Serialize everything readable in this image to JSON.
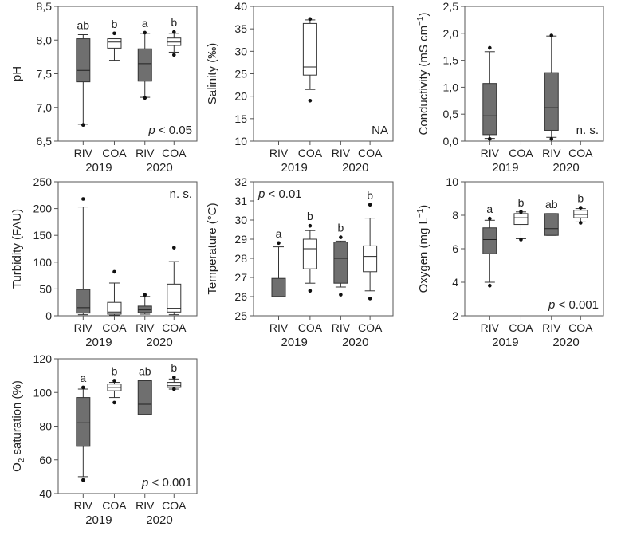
{
  "chart_data": [
    {
      "type": "box",
      "id": "ph",
      "ylabel": "pH",
      "ylim": [
        6.5,
        8.5
      ],
      "yticks": [
        6.5,
        7.0,
        7.5,
        8.0,
        8.5
      ],
      "ytick_labels": [
        "6,5",
        "7,0",
        "7,5",
        "8,0",
        "8,5"
      ],
      "categories": [
        "RIV",
        "COA",
        "RIV",
        "COA"
      ],
      "groups": [
        "2019",
        "2020"
      ],
      "annotation": {
        "italic": "p",
        "rest": " < 0.05"
      },
      "boxes": [
        {
          "fill": "dark",
          "min": 6.75,
          "q1": 7.38,
          "median": 7.55,
          "q3": 8.02,
          "max": 8.08,
          "outliers": [
            6.74
          ],
          "letter": "ab"
        },
        {
          "fill": "light",
          "min": 7.7,
          "q1": 7.88,
          "median": 7.97,
          "q3": 8.02,
          "max": 8.02,
          "outliers": [
            8.1
          ],
          "letter": "b"
        },
        {
          "fill": "dark",
          "min": 7.15,
          "q1": 7.39,
          "median": 7.65,
          "q3": 7.87,
          "max": 8.1,
          "outliers": [
            7.14,
            8.11
          ],
          "letter": "a"
        },
        {
          "fill": "light",
          "min": 7.82,
          "q1": 7.92,
          "median": 7.97,
          "q3": 8.03,
          "max": 8.1,
          "outliers": [
            7.78,
            8.12
          ],
          "letter": "b"
        }
      ]
    },
    {
      "type": "box",
      "id": "salinity",
      "ylabel": "Salinity (‰)",
      "ylim": [
        10,
        40
      ],
      "yticks": [
        10,
        15,
        20,
        25,
        30,
        35,
        40
      ],
      "ytick_labels": [
        "10",
        "15",
        "20",
        "25",
        "30",
        "35",
        "40"
      ],
      "categories": [
        "RIV",
        "COA",
        "RIV",
        "COA"
      ],
      "groups": [
        "2019",
        "2020"
      ],
      "annotation": {
        "italic": "",
        "rest": "NA"
      },
      "boxes": [
        null,
        {
          "fill": "light",
          "min": 21.5,
          "q1": 24.7,
          "median": 26.5,
          "q3": 36.2,
          "max": 37.0,
          "outliers": [
            19.0,
            37.2
          ],
          "letter": ""
        },
        null,
        null
      ]
    },
    {
      "type": "box",
      "id": "conductivity",
      "ylabel": "Conductivity (mS cm−1)",
      "ylim": [
        0,
        2.5
      ],
      "yticks": [
        0,
        0.5,
        1.0,
        1.5,
        2.0,
        2.5
      ],
      "ytick_labels": [
        "0,0",
        "0,5",
        "1,0",
        "1,5",
        "2,0",
        "2,5"
      ],
      "categories": [
        "RIV",
        "COA",
        "RIV",
        "COA"
      ],
      "groups": [
        "2019",
        "2020"
      ],
      "annotation": {
        "italic": "",
        "rest": "n. s."
      },
      "boxes": [
        {
          "fill": "dark",
          "min": 0.05,
          "q1": 0.12,
          "median": 0.47,
          "q3": 1.07,
          "max": 1.66,
          "outliers": [
            0.04,
            1.73
          ],
          "letter": ""
        },
        null,
        {
          "fill": "dark",
          "min": 0.07,
          "q1": 0.2,
          "median": 0.62,
          "q3": 1.27,
          "max": 1.95,
          "outliers": [
            0.04,
            1.96
          ],
          "letter": ""
        },
        null
      ]
    },
    {
      "type": "box",
      "id": "turbidity",
      "ylabel": "Turbidity (FAU)",
      "ylim": [
        0,
        250
      ],
      "yticks": [
        0,
        50,
        100,
        150,
        200,
        250
      ],
      "ytick_labels": [
        "0",
        "50",
        "100",
        "150",
        "200",
        "250"
      ],
      "categories": [
        "RIV",
        "COA",
        "RIV",
        "COA"
      ],
      "groups": [
        "2019",
        "2020"
      ],
      "annotation": {
        "italic": "",
        "rest": "n. s."
      },
      "boxes": [
        {
          "fill": "dark",
          "min": 2,
          "q1": 5,
          "median": 15,
          "q3": 49,
          "max": 203,
          "outliers": [
            218
          ],
          "letter": ""
        },
        {
          "fill": "light",
          "min": 1,
          "q1": 3,
          "median": 7,
          "q3": 25,
          "max": 61,
          "outliers": [
            82
          ],
          "letter": ""
        },
        {
          "fill": "dark",
          "min": 3,
          "q1": 6,
          "median": 11,
          "q3": 18,
          "max": 36,
          "outliers": [
            39
          ],
          "letter": ""
        },
        {
          "fill": "light",
          "min": 2,
          "q1": 7,
          "median": 14,
          "q3": 59,
          "max": 101,
          "outliers": [
            127
          ],
          "letter": ""
        }
      ]
    },
    {
      "type": "box",
      "id": "temperature",
      "ylabel": "Temperature (°C)",
      "ylim": [
        25,
        32
      ],
      "yticks": [
        25,
        26,
        27,
        28,
        29,
        30,
        31,
        32
      ],
      "ytick_labels": [
        "25",
        "26",
        "27",
        "28",
        "29",
        "30",
        "31",
        "32"
      ],
      "categories": [
        "RIV",
        "COA",
        "RIV",
        "COA"
      ],
      "groups": [
        "2019",
        "2020"
      ],
      "annotation": {
        "italic": "p",
        "rest": " < 0.01"
      },
      "boxes": [
        {
          "fill": "dark",
          "min": 26.0,
          "q1": 26.0,
          "median": 26.0,
          "q3": 26.95,
          "max": 28.6,
          "outliers": [
            28.8
          ],
          "letter": "a"
        },
        {
          "fill": "light",
          "min": 26.7,
          "q1": 27.45,
          "median": 28.5,
          "q3": 29.0,
          "max": 29.45,
          "outliers": [
            26.3,
            29.7
          ],
          "letter": "b"
        },
        {
          "fill": "dark",
          "min": 26.5,
          "q1": 26.7,
          "median": 28.0,
          "q3": 28.85,
          "max": 28.9,
          "outliers": [
            26.1,
            29.1
          ],
          "letter": "b"
        },
        {
          "fill": "light",
          "min": 26.3,
          "q1": 27.3,
          "median": 28.1,
          "q3": 28.65,
          "max": 30.1,
          "outliers": [
            25.9,
            30.8
          ],
          "letter": "b"
        }
      ]
    },
    {
      "type": "box",
      "id": "oxygen",
      "ylabel": "Oxygen (mg L−1)",
      "ylim": [
        2,
        10
      ],
      "yticks": [
        2,
        4,
        6,
        8,
        10
      ],
      "ytick_labels": [
        "2",
        "4",
        "6",
        "8",
        "10"
      ],
      "categories": [
        "RIV",
        "COA",
        "RIV",
        "COA"
      ],
      "groups": [
        "2019",
        "2020"
      ],
      "annotation": {
        "italic": "p",
        "rest": " < 0.001"
      },
      "boxes": [
        {
          "fill": "dark",
          "min": 4.0,
          "q1": 5.7,
          "median": 6.55,
          "q3": 7.25,
          "max": 7.7,
          "outliers": [
            3.8,
            7.8
          ],
          "letter": "a"
        },
        {
          "fill": "light",
          "min": 6.6,
          "q1": 7.45,
          "median": 7.85,
          "q3": 8.1,
          "max": 8.2,
          "outliers": [
            6.55,
            8.2
          ],
          "letter": "b"
        },
        {
          "fill": "dark",
          "min": 6.8,
          "q1": 6.8,
          "median": 7.2,
          "q3": 8.1,
          "max": 8.1,
          "outliers": [],
          "letter": "ab"
        },
        {
          "fill": "light",
          "min": 7.6,
          "q1": 7.85,
          "median": 8.05,
          "q3": 8.3,
          "max": 8.4,
          "outliers": [
            7.55,
            8.45
          ],
          "letter": "b"
        }
      ]
    },
    {
      "type": "box",
      "id": "o2sat",
      "ylabel": "O2 saturation (%)",
      "ylim": [
        40,
        120
      ],
      "yticks": [
        40,
        60,
        80,
        100,
        120
      ],
      "ytick_labels": [
        "40",
        "60",
        "80",
        "100",
        "120"
      ],
      "categories": [
        "RIV",
        "COA",
        "RIV",
        "COA"
      ],
      "groups": [
        "2019",
        "2020"
      ],
      "annotation": {
        "italic": "p",
        "rest": " < 0.001"
      },
      "boxes": [
        {
          "fill": "dark",
          "min": 50,
          "q1": 68,
          "median": 82,
          "q3": 97,
          "max": 102,
          "outliers": [
            48,
            103
          ],
          "letter": "a"
        },
        {
          "fill": "light",
          "min": 97,
          "q1": 101,
          "median": 103,
          "q3": 105,
          "max": 106,
          "outliers": [
            94,
            107
          ],
          "letter": "b"
        },
        {
          "fill": "dark",
          "min": 87,
          "q1": 87,
          "median": 93,
          "q3": 107,
          "max": 107,
          "outliers": [],
          "letter": "ab"
        },
        {
          "fill": "light",
          "min": 102,
          "q1": 103,
          "median": 104,
          "q3": 106,
          "max": 108,
          "outliers": [
            102,
            109
          ],
          "letter": "b"
        }
      ]
    }
  ]
}
